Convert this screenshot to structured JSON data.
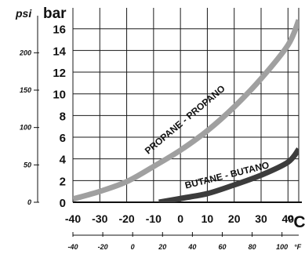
{
  "chart_data": {
    "type": "line",
    "units": {
      "psi": "psi",
      "bar": "bar",
      "celsius": "°C",
      "fahrenheit": "°F"
    },
    "psi_ticks": [
      {
        "value": 0,
        "label": "0"
      },
      {
        "value": 50,
        "label": "50"
      },
      {
        "value": 100,
        "label": "100"
      },
      {
        "value": 150,
        "label": "150"
      },
      {
        "value": 200,
        "label": "200"
      }
    ],
    "bar_ticks": [
      "0",
      "2",
      "4",
      "6",
      "8",
      "10",
      "12",
      "14",
      "16"
    ],
    "bar_ylim": [
      0,
      17.5
    ],
    "celsius_ticks": [
      "-40",
      "-30",
      "-20",
      "-10",
      "0",
      "10",
      "20",
      "30",
      "40"
    ],
    "fahrenheit_ticks": [
      "-40",
      "-20",
      "0",
      "20",
      "40",
      "60",
      "80",
      "100"
    ],
    "xlim": [
      -40,
      44
    ],
    "grid": true,
    "series": [
      {
        "name": "PROPANE - PROPANO",
        "color": "#a0a0a0",
        "points": [
          [
            -40,
            0.3
          ],
          [
            -30,
            1.0
          ],
          [
            -20,
            1.9
          ],
          [
            -10,
            3.3
          ],
          [
            0,
            4.8
          ],
          [
            10,
            6.6
          ],
          [
            20,
            8.8
          ],
          [
            30,
            11.4
          ],
          [
            40,
            14.5
          ],
          [
            44,
            16.8
          ]
        ]
      },
      {
        "name": "BUTANE - BUTANO",
        "color": "#3c3c3c",
        "points": [
          [
            -8,
            0.0
          ],
          [
            0,
            0.35
          ],
          [
            10,
            0.8
          ],
          [
            20,
            1.6
          ],
          [
            30,
            2.5
          ],
          [
            40,
            3.7
          ],
          [
            44,
            4.9
          ]
        ]
      }
    ]
  }
}
